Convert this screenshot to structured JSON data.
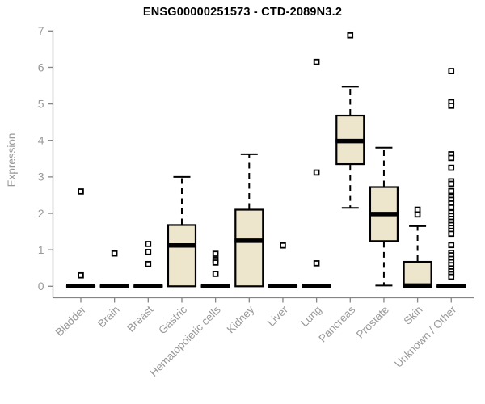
{
  "chart_data": {
    "type": "boxplot",
    "title": "ENSG00000251573 - CTD-2089N3.2",
    "ylabel": "Expression",
    "xlabel": "",
    "ylim": [
      0,
      7
    ],
    "yticks": [
      0,
      1,
      2,
      3,
      4,
      5,
      6,
      7
    ],
    "grid": false,
    "legend": "none",
    "categories": [
      "Bladder",
      "Brain",
      "Breast",
      "Gastric",
      "Hematopoietic cells",
      "Kidney",
      "Liver",
      "Lung",
      "Pancreas",
      "Prostate",
      "Skin",
      "Unknown / Other"
    ],
    "series": [
      {
        "category": "Bladder",
        "q1": 0,
        "median": 0,
        "q3": 0,
        "whisker_low": 0,
        "whisker_high": 0,
        "outliers": [
          2.6,
          0.3
        ]
      },
      {
        "category": "Brain",
        "q1": 0,
        "median": 0,
        "q3": 0,
        "whisker_low": 0,
        "whisker_high": 0,
        "outliers": [
          0.9
        ]
      },
      {
        "category": "Breast",
        "q1": 0,
        "median": 0,
        "q3": 0,
        "whisker_low": 0,
        "whisker_high": 0,
        "outliers": [
          1.16,
          0.94,
          0.61
        ]
      },
      {
        "category": "Gastric",
        "q1": 0,
        "median": 1.12,
        "q3": 1.68,
        "whisker_low": 0,
        "whisker_high": 3.0,
        "outliers": []
      },
      {
        "category": "Hematopoietic cells",
        "q1": 0,
        "median": 0,
        "q3": 0,
        "whisker_low": 0,
        "whisker_high": 0,
        "outliers": [
          0.89,
          0.72,
          0.65,
          0.34
        ]
      },
      {
        "category": "Kidney",
        "q1": 0,
        "median": 1.25,
        "q3": 2.1,
        "whisker_low": 0,
        "whisker_high": 3.62,
        "outliers": []
      },
      {
        "category": "Liver",
        "q1": 0,
        "median": 0,
        "q3": 0,
        "whisker_low": 0,
        "whisker_high": 0,
        "outliers": [
          1.12
        ]
      },
      {
        "category": "Lung",
        "q1": 0,
        "median": 0,
        "q3": 0,
        "whisker_low": 0,
        "whisker_high": 0,
        "outliers": [
          6.15,
          3.12,
          0.63
        ]
      },
      {
        "category": "Pancreas",
        "q1": 3.35,
        "median": 3.98,
        "q3": 4.68,
        "whisker_low": 2.15,
        "whisker_high": 5.47,
        "outliers": [
          6.88
        ]
      },
      {
        "category": "Prostate",
        "q1": 1.24,
        "median": 1.98,
        "q3": 2.72,
        "whisker_low": 0.02,
        "whisker_high": 3.8,
        "outliers": []
      },
      {
        "category": "Skin",
        "q1": 0,
        "median": 0.02,
        "q3": 0.67,
        "whisker_low": 0,
        "whisker_high": 1.65,
        "outliers": [
          2.1,
          1.97
        ]
      },
      {
        "category": "Unknown / Other",
        "q1": 0,
        "median": 0,
        "q3": 0,
        "whisker_low": 0,
        "whisker_high": 0,
        "outliers": [
          5.9,
          5.05,
          4.95,
          3.62,
          3.52,
          3.25,
          2.88,
          2.81,
          2.61,
          2.46,
          2.37,
          2.27,
          2.16,
          2.02,
          1.93,
          1.85,
          1.77,
          1.68,
          1.6,
          1.52,
          1.44,
          1.13,
          0.92,
          0.85,
          0.75,
          0.66,
          0.58,
          0.49,
          0.41,
          0.33,
          0.26
        ]
      }
    ],
    "colors": {
      "box_fill": "#EDE6CC",
      "box_stroke": "#000000",
      "median_color": "#000000",
      "whisker_color": "#000000",
      "outlier_stroke": "#000000",
      "outlier_fill": "#FFFFFF",
      "axis_color": "#858585",
      "label_color": "#999999",
      "title_color": "#000000",
      "background": "#FFFFFF"
    }
  }
}
